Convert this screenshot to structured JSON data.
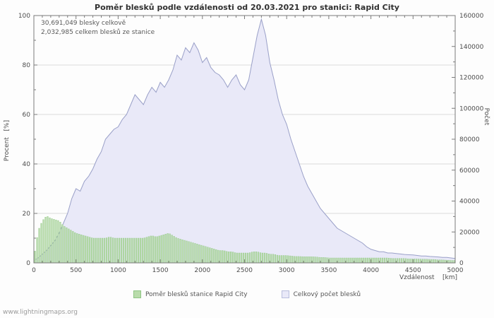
{
  "title": "Poměr blesků podle vzdálenosti od 20.03.2021 pro stanici: Rapid City",
  "annotations": [
    "30,691,049 blesky celkově",
    "2,032,985 celkem blesků ze stanice"
  ],
  "axes": {
    "left_label": "Procent   [%]",
    "right_label": "Počet",
    "x_label": "Vzdálenost    [km]"
  },
  "legend": [
    {
      "label": "Poměr blesků stanice Rapid City",
      "color": "#b9dcab",
      "border": "#8ec583"
    },
    {
      "label": "Celkový počet blesků",
      "color": "#e9e9f8",
      "border": "#b9bedd"
    }
  ],
  "watermark": "www.lightningmaps.org",
  "chart_data": {
    "type": "area",
    "title": "Poměr blesků podle vzdálenosti od 20.03.2021 pro stanici: Rapid City",
    "xlabel": "Vzdálenost [km]",
    "ylabel_left": "Procent [%]",
    "ylabel_right": "Počet",
    "xlim": [
      0,
      5000
    ],
    "ylim_left": [
      0,
      100
    ],
    "ylim_right": [
      0,
      160000
    ],
    "x_start": 0,
    "x_step": 50,
    "x_unit": "km",
    "x_ticks": [
      0,
      500,
      1000,
      1500,
      2000,
      2500,
      3000,
      3500,
      4000,
      4500,
      5000
    ],
    "x_minor_step": 100,
    "y_left_ticks": [
      0,
      20,
      40,
      60,
      80,
      100
    ],
    "y_left_minor_step": 10,
    "y_right_ticks": [
      0,
      20000,
      40000,
      60000,
      80000,
      100000,
      120000,
      140000,
      160000
    ],
    "y_right_minor_step": 10000,
    "grid": "horizontal",
    "legend_position": "bottom-center",
    "series": [
      {
        "name": "Poměr blesků stanice Rapid City",
        "axis": "left",
        "style": "bars",
        "unit": "%",
        "fill": "#b9dcab",
        "stroke": "#8ec583",
        "values": [
          2,
          13,
          17,
          19,
          18,
          17.5,
          17,
          15,
          14,
          13,
          12,
          11.5,
          11,
          10.5,
          10,
          10,
          10,
          10,
          10.5,
          10,
          10,
          10,
          10,
          10,
          10,
          10,
          10,
          10.5,
          11,
          10.5,
          11,
          11.5,
          12,
          11,
          10,
          9.5,
          9,
          8.5,
          8,
          7.5,
          7,
          6.5,
          6,
          5.5,
          5,
          5,
          4.5,
          4.5,
          4,
          4,
          4,
          4,
          4.5,
          4.5,
          4,
          4,
          3.5,
          3.5,
          3,
          3,
          3,
          2.8,
          2.6,
          2.6,
          2.5,
          2.5,
          2.5,
          2.4,
          2.2,
          2.2,
          2,
          2,
          2,
          2,
          2,
          2,
          2,
          2,
          2,
          2,
          2,
          2,
          2,
          2,
          2,
          1.8,
          1.8,
          1.8,
          1.8,
          1.6,
          1.6,
          1.6,
          1.5,
          1.5,
          1.4,
          1.4,
          1.2,
          1.2,
          1.1,
          1,
          1
        ]
      },
      {
        "name": "Celkový počet blesků",
        "axis": "right",
        "style": "area",
        "unit": "count",
        "fill": "#e9e9f8",
        "stroke": "#9aa0c8",
        "values": [
          1600,
          3200,
          5600,
          8000,
          11200,
          14400,
          19200,
          25600,
          32000,
          41600,
          48000,
          46400,
          52800,
          56000,
          60800,
          67200,
          72000,
          80000,
          83200,
          86400,
          88000,
          92800,
          96000,
          102400,
          108800,
          105600,
          102400,
          108800,
          113600,
          110400,
          116800,
          113600,
          118400,
          124800,
          134400,
          131200,
          139200,
          136000,
          142400,
          137600,
          129600,
          132800,
          126400,
          123200,
          121600,
          118400,
          113600,
          118400,
          121600,
          115200,
          112000,
          118400,
          132800,
          147200,
          157600,
          147200,
          129600,
          118400,
          105600,
          96000,
          89600,
          80000,
          72000,
          64000,
          56000,
          49600,
          44800,
          40000,
          35200,
          32000,
          28800,
          25600,
          22400,
          20800,
          19200,
          17600,
          16000,
          14400,
          12800,
          10400,
          8800,
          8000,
          7200,
          7200,
          6400,
          6400,
          6080,
          5760,
          5440,
          5280,
          5120,
          4800,
          4480,
          4480,
          4160,
          4000,
          3840,
          3520,
          3520,
          3200,
          2880
        ]
      }
    ]
  }
}
